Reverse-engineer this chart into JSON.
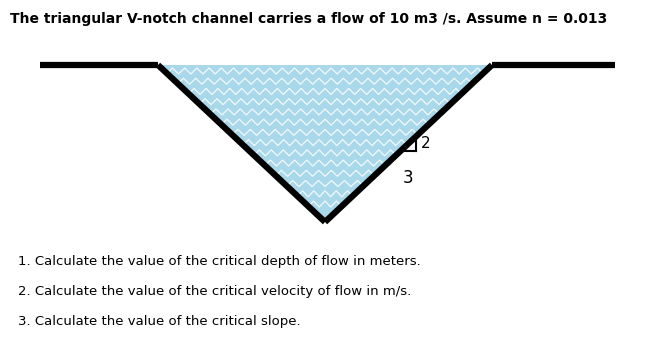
{
  "title": "The triangular V-notch channel carries a flow of 10 m3 /s. Assume n = 0.013",
  "title_fontsize": 10,
  "title_fontweight": "bold",
  "bg_color": "#ffffff",
  "water_color": "#a8d8ea",
  "channel_color": "#000000",
  "channel_lw": 4.5,
  "questions": [
    "1. Calculate the value of the critical depth of flow in meters.",
    "2. Calculate the value of the critical velocity of flow in m/s.",
    "3. Calculate the value of the critical slope."
  ],
  "question_fontsize": 9.5,
  "label_2": "2",
  "label_3": "3",
  "wave_color": "#ffffff",
  "wave_color2": "#87ceeb"
}
